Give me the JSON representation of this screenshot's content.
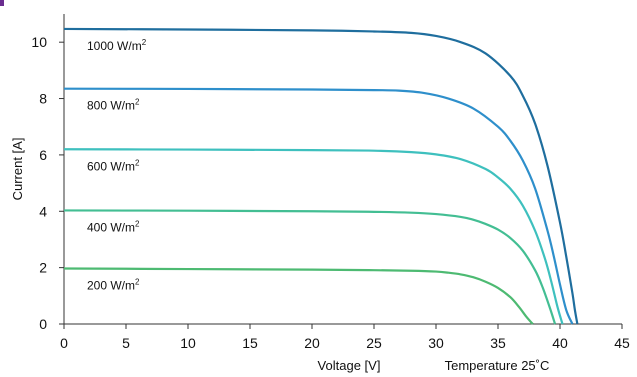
{
  "chart_data": {
    "type": "line",
    "title": "",
    "xlabel": "Voltage [V]",
    "ylabel": "Current [A]",
    "annotation": "Temperature 25˚C",
    "xlim": [
      0,
      45
    ],
    "ylim": [
      0,
      11
    ],
    "xticks": [
      0,
      5,
      10,
      15,
      20,
      25,
      30,
      35,
      40,
      45
    ],
    "yticks": [
      0,
      2,
      4,
      6,
      8,
      10
    ],
    "grid": false,
    "series": [
      {
        "name": "1000 W/m²",
        "label_text": "1000 W/m",
        "label_sup": "2",
        "color": "#1F6E9E",
        "x": [
          0,
          10,
          20,
          25,
          28,
          30,
          32,
          34,
          36,
          37,
          38,
          39,
          40,
          40.5,
          41,
          41.2,
          41.4
        ],
        "y": [
          10.47,
          10.45,
          10.42,
          10.38,
          10.33,
          10.22,
          10.0,
          9.6,
          8.8,
          8.1,
          7.1,
          5.6,
          3.6,
          2.4,
          1.1,
          0.5,
          0
        ]
      },
      {
        "name": "800 W/m²",
        "label_text": "800 W/m",
        "label_sup": "2",
        "color": "#2E8FCB",
        "x": [
          0,
          10,
          20,
          25,
          27,
          29,
          31,
          33,
          35,
          36,
          37,
          38,
          39,
          39.5,
          40,
          40.5,
          41.0
        ],
        "y": [
          8.35,
          8.34,
          8.32,
          8.3,
          8.28,
          8.2,
          8.0,
          7.65,
          7.0,
          6.5,
          5.8,
          4.8,
          3.3,
          2.4,
          1.4,
          0.5,
          0
        ]
      },
      {
        "name": "600 W/m²",
        "label_text": "600 W/m",
        "label_sup": "2",
        "color": "#3EC0BE",
        "x": [
          0,
          10,
          20,
          25,
          28,
          30,
          32,
          34,
          35,
          36,
          37,
          38,
          38.8,
          39.3,
          39.8,
          40.2
        ],
        "y": [
          6.2,
          6.19,
          6.17,
          6.15,
          6.1,
          6.02,
          5.85,
          5.5,
          5.2,
          4.8,
          4.2,
          3.3,
          2.3,
          1.5,
          0.6,
          0
        ]
      },
      {
        "name": "400 W/m²",
        "label_text": "400 W/m",
        "label_sup": "2",
        "color": "#43BE93",
        "x": [
          0,
          10,
          20,
          25,
          28,
          30,
          32,
          33,
          34,
          35,
          36,
          37,
          38,
          38.6,
          39.2,
          39.6
        ],
        "y": [
          4.03,
          4.02,
          4.0,
          3.98,
          3.95,
          3.9,
          3.8,
          3.7,
          3.55,
          3.35,
          3.05,
          2.6,
          1.9,
          1.3,
          0.55,
          0
        ]
      },
      {
        "name": "200 W/m²",
        "label_text": "200 W/m",
        "label_sup": "2",
        "color": "#4DBA72",
        "x": [
          0,
          10,
          20,
          25,
          28,
          30,
          31,
          32,
          33,
          34,
          35,
          36,
          36.7,
          37.3,
          37.8
        ],
        "y": [
          1.97,
          1.95,
          1.93,
          1.91,
          1.89,
          1.86,
          1.82,
          1.76,
          1.66,
          1.5,
          1.28,
          0.95,
          0.6,
          0.25,
          0
        ]
      }
    ]
  }
}
